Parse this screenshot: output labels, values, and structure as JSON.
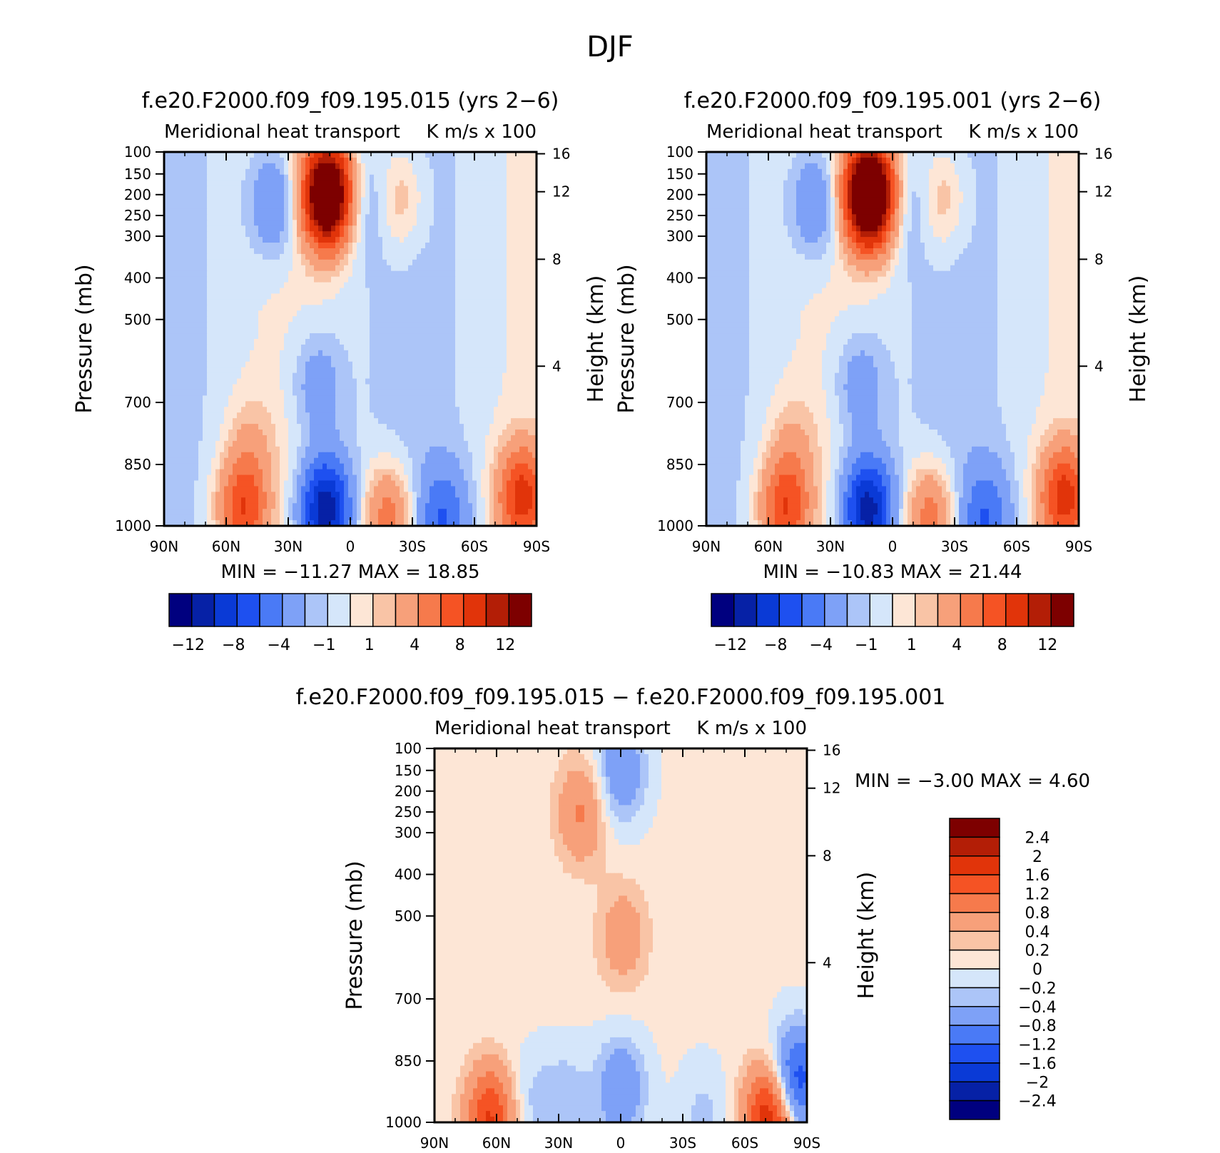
{
  "figure_title": "DJF",
  "chart_data": [
    {
      "type": "heatmap",
      "title": "f.e20.F2000.f09_f09.195.015 (yrs 2−6)",
      "left_subtitle": "Meridional heat transport",
      "right_subtitle": "K m/s x 100",
      "ylabel": "Pressure (mb)",
      "ylabel_right": "Height (km)",
      "x_ticks": [
        "90N",
        "60N",
        "30N",
        "0",
        "30S",
        "60S",
        "90S"
      ],
      "y_ticks": [
        "100",
        "150",
        "200",
        "250",
        "300",
        "400",
        "500",
        "700",
        "850",
        "1000"
      ],
      "y_right_ticks": [
        "16",
        "12",
        "8",
        "4"
      ],
      "min_label": "MIN",
      "max_label": "MAX",
      "min": "−11.27",
      "max": "18.85",
      "colorbar_labels": [
        "−12",
        "−8",
        "−4",
        "−1",
        "1",
        "4",
        "8",
        "12"
      ],
      "features": [
        {
          "lat": 11,
          "p": 200,
          "value": 18.85
        },
        {
          "lat": -23,
          "p": 210,
          "value": 3
        },
        {
          "lat": 37,
          "p": 220,
          "value": -4
        },
        {
          "lat": -8,
          "p": 220,
          "value": -2
        },
        {
          "lat": 12,
          "p": 960,
          "value": -11.27
        },
        {
          "lat": 52,
          "p": 960,
          "value": 8
        },
        {
          "lat": -18,
          "p": 980,
          "value": 6
        },
        {
          "lat": -45,
          "p": 980,
          "value": -5
        },
        {
          "lat": -83,
          "p": 930,
          "value": 9
        },
        {
          "lat": 48,
          "p": 800,
          "value": 2
        },
        {
          "lat": 16,
          "p": 660,
          "value": -3
        }
      ]
    },
    {
      "type": "heatmap",
      "title": "f.e20.F2000.f09_f09.195.001 (yrs 2−6)",
      "left_subtitle": "Meridional heat transport",
      "right_subtitle": "K m/s x 100",
      "ylabel": "Pressure (mb)",
      "ylabel_right": "Height (km)",
      "x_ticks": [
        "90N",
        "60N",
        "30N",
        "0",
        "30S",
        "60S",
        "90S"
      ],
      "y_ticks": [
        "100",
        "150",
        "200",
        "250",
        "300",
        "400",
        "500",
        "700",
        "850",
        "1000"
      ],
      "y_right_ticks": [
        "16",
        "12",
        "8",
        "4"
      ],
      "min_label": "MIN",
      "max_label": "MAX",
      "min": "−10.83",
      "max": "21.44",
      "colorbar_labels": [
        "−12",
        "−8",
        "−4",
        "−1",
        "1",
        "4",
        "8",
        "12"
      ],
      "features": [
        {
          "lat": 11,
          "p": 200,
          "value": 21.44
        },
        {
          "lat": -23,
          "p": 210,
          "value": 3
        },
        {
          "lat": 37,
          "p": 220,
          "value": -4
        },
        {
          "lat": -8,
          "p": 220,
          "value": -2
        },
        {
          "lat": 12,
          "p": 960,
          "value": -10.83
        },
        {
          "lat": 52,
          "p": 960,
          "value": 8
        },
        {
          "lat": -18,
          "p": 980,
          "value": 6
        },
        {
          "lat": -45,
          "p": 980,
          "value": -5
        },
        {
          "lat": -83,
          "p": 930,
          "value": 9
        },
        {
          "lat": 48,
          "p": 800,
          "value": 2
        },
        {
          "lat": 16,
          "p": 660,
          "value": -3
        }
      ]
    },
    {
      "type": "heatmap",
      "title": "f.e20.F2000.f09_f09.195.015 − f.e20.F2000.f09_f09.195.001",
      "left_subtitle": "Meridional heat transport",
      "right_subtitle": "K m/s x 100",
      "ylabel": "Pressure (mb)",
      "ylabel_right": "Height (km)",
      "x_ticks": [
        "90N",
        "60N",
        "30N",
        "0",
        "30S",
        "60S",
        "90S"
      ],
      "y_ticks": [
        "100",
        "150",
        "200",
        "250",
        "300",
        "400",
        "500",
        "700",
        "850",
        "1000"
      ],
      "y_right_ticks": [
        "16",
        "12",
        "8",
        "4"
      ],
      "min_label": "MIN",
      "max_label": "MAX",
      "min": "−3.00",
      "max": "4.60",
      "colorbar_labels": [
        "2.4",
        "2",
        "1.6",
        "1.2",
        "0.8",
        "0.4",
        "0.2",
        "0",
        "−0.2",
        "−0.4",
        "−0.8",
        "−1.2",
        "−1.6",
        "−2",
        "−2.4"
      ],
      "features": [
        {
          "lat": 19,
          "p": 250,
          "value": 0.8
        },
        {
          "lat": 0,
          "p": 150,
          "value": -0.8
        },
        {
          "lat": -1,
          "p": 550,
          "value": 0.6
        },
        {
          "lat": 0,
          "p": 920,
          "value": -0.8
        },
        {
          "lat": 63,
          "p": 990,
          "value": 1.6
        },
        {
          "lat": -72,
          "p": 990,
          "value": 2
        },
        {
          "lat": -85,
          "p": 900,
          "value": -1.6
        },
        {
          "lat": 27,
          "p": 950,
          "value": -0.4
        },
        {
          "lat": 45,
          "p": 950,
          "value": -0.3
        },
        {
          "lat": -40,
          "p": 980,
          "value": -0.3
        }
      ]
    }
  ],
  "colors": {
    "diverging_scale": [
      "#00007f",
      "#0621a6",
      "#0a3ad6",
      "#1e50f0",
      "#4a7af6",
      "#7ea1f7",
      "#acc5f8",
      "#d5e6fa",
      "#fde6d6",
      "#f9c4a6",
      "#f7a07a",
      "#f67a4c",
      "#f55324",
      "#e1340a",
      "#b31e06",
      "#7d0000"
    ],
    "axis": "#000000"
  }
}
